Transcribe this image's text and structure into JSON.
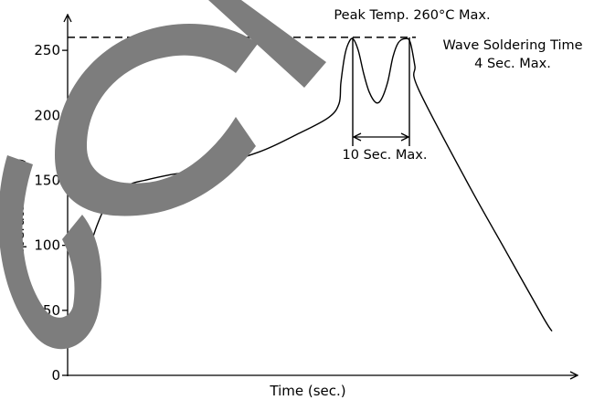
{
  "chart_data": {
    "type": "line",
    "title": "",
    "xlabel": "Time (sec.)",
    "ylabel": "Temperature (°C)",
    "ylim": [
      0,
      265
    ],
    "xlim": [
      0,
      560
    ],
    "yticks": [
      0,
      50,
      100,
      150,
      200,
      250
    ],
    "ytick_labels": [
      "0",
      "50",
      "100",
      "150",
      "200",
      "250"
    ],
    "grid": false,
    "series": [
      {
        "values_xy": [
          [
            0,
            30
          ],
          [
            8,
            55
          ],
          [
            16,
            78
          ],
          [
            24,
            98
          ],
          [
            32,
            115
          ],
          [
            40,
            128
          ],
          [
            50,
            138
          ],
          [
            60,
            144
          ],
          [
            72,
            148
          ],
          [
            84,
            150
          ],
          [
            110,
            154
          ],
          [
            150,
            159
          ],
          [
            210,
            172
          ],
          [
            250,
            185
          ],
          [
            285,
            198
          ],
          [
            297,
            209
          ],
          [
            299,
            225
          ],
          [
            303,
            245
          ],
          [
            307,
            255
          ],
          [
            312,
            259
          ],
          [
            318,
            250
          ],
          [
            324,
            232
          ],
          [
            330,
            218
          ],
          [
            337,
            210
          ],
          [
            343,
            212
          ],
          [
            350,
            225
          ],
          [
            356,
            245
          ],
          [
            362,
            256
          ],
          [
            370,
            259
          ],
          [
            375,
            256
          ],
          [
            380,
            238
          ],
          [
            384,
            220
          ],
          [
            440,
            145
          ],
          [
            480,
            95
          ],
          [
            520,
            45
          ],
          [
            530,
            34
          ]
        ]
      }
    ],
    "peak_line_value": 260,
    "annotations": {
      "peak": "Peak Temp. 260°C Max.",
      "wave_line1": "Wave Soldering Time",
      "wave_line2": "4 Sec. Max.",
      "interval": "10 Sec. Max."
    }
  }
}
